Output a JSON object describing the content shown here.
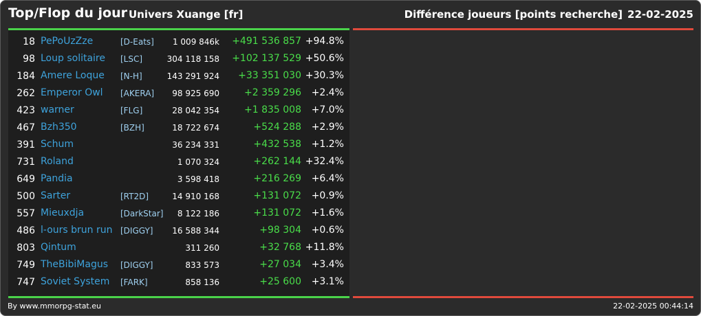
{
  "header": {
    "title": "Top/Flop du jour",
    "universe": "Univers Xuange [fr]",
    "metric": "Différence joueurs [points recherche]",
    "date": "22-02-2025"
  },
  "colors": {
    "top_accent": "#4ad34a",
    "flop_accent": "#e04a3c",
    "name_link": "#3ea3dc",
    "positive": "#4ade4a"
  },
  "rows": [
    {
      "rank": "18",
      "name": "PePoUzZze",
      "alliance": "[D-Eats]",
      "points": "1 009 846k",
      "diff": "+491 536 857",
      "pct": "+94.8%"
    },
    {
      "rank": "98",
      "name": "Loup solitaire",
      "alliance": "[LSC]",
      "points": "304 118 158",
      "diff": "+102 137 529",
      "pct": "+50.6%"
    },
    {
      "rank": "184",
      "name": "Amere Loque",
      "alliance": "[N-H]",
      "points": "143 291 924",
      "diff": "+33 351 030",
      "pct": "+30.3%"
    },
    {
      "rank": "262",
      "name": "Emperor Owl",
      "alliance": "[AKERA]",
      "points": "98 925 690",
      "diff": "+2 359 296",
      "pct": "+2.4%"
    },
    {
      "rank": "423",
      "name": "warner",
      "alliance": "[FLG]",
      "points": "28 042 354",
      "diff": "+1 835 008",
      "pct": "+7.0%"
    },
    {
      "rank": "467",
      "name": "Bzh350",
      "alliance": "[BZH]",
      "points": "18 722 674",
      "diff": "+524 288",
      "pct": "+2.9%"
    },
    {
      "rank": "391",
      "name": "Schum",
      "alliance": "",
      "points": "36 234 331",
      "diff": "+432 538",
      "pct": "+1.2%"
    },
    {
      "rank": "731",
      "name": "Roland",
      "alliance": "",
      "points": "1 070 324",
      "diff": "+262 144",
      "pct": "+32.4%"
    },
    {
      "rank": "649",
      "name": "Pandia",
      "alliance": "",
      "points": "3 598 418",
      "diff": "+216 269",
      "pct": "+6.4%"
    },
    {
      "rank": "500",
      "name": "Sarter",
      "alliance": "[RT2D]",
      "points": "14 910 168",
      "diff": "+131 072",
      "pct": "+0.9%"
    },
    {
      "rank": "557",
      "name": "Mieuxdja",
      "alliance": "[DarkStar]",
      "points": "8 122 186",
      "diff": "+131 072",
      "pct": "+1.6%"
    },
    {
      "rank": "486",
      "name": "l-ours brun run",
      "alliance": "[DIGGY]",
      "points": "16 588 344",
      "diff": "+98 304",
      "pct": "+0.6%"
    },
    {
      "rank": "803",
      "name": "Qintum",
      "alliance": "",
      "points": "311 260",
      "diff": "+32 768",
      "pct": "+11.8%"
    },
    {
      "rank": "749",
      "name": "TheBibiMagus",
      "alliance": "[DIGGY]",
      "points": "833 573",
      "diff": "+27 034",
      "pct": "+3.4%"
    },
    {
      "rank": "747",
      "name": "Soviet System",
      "alliance": "[FARK]",
      "points": "858 136",
      "diff": "+25 600",
      "pct": "+3.1%"
    }
  ],
  "footer": {
    "credit": "By www.mmorpg-stat.eu",
    "timestamp": "22-02-2025 00:44:14"
  }
}
